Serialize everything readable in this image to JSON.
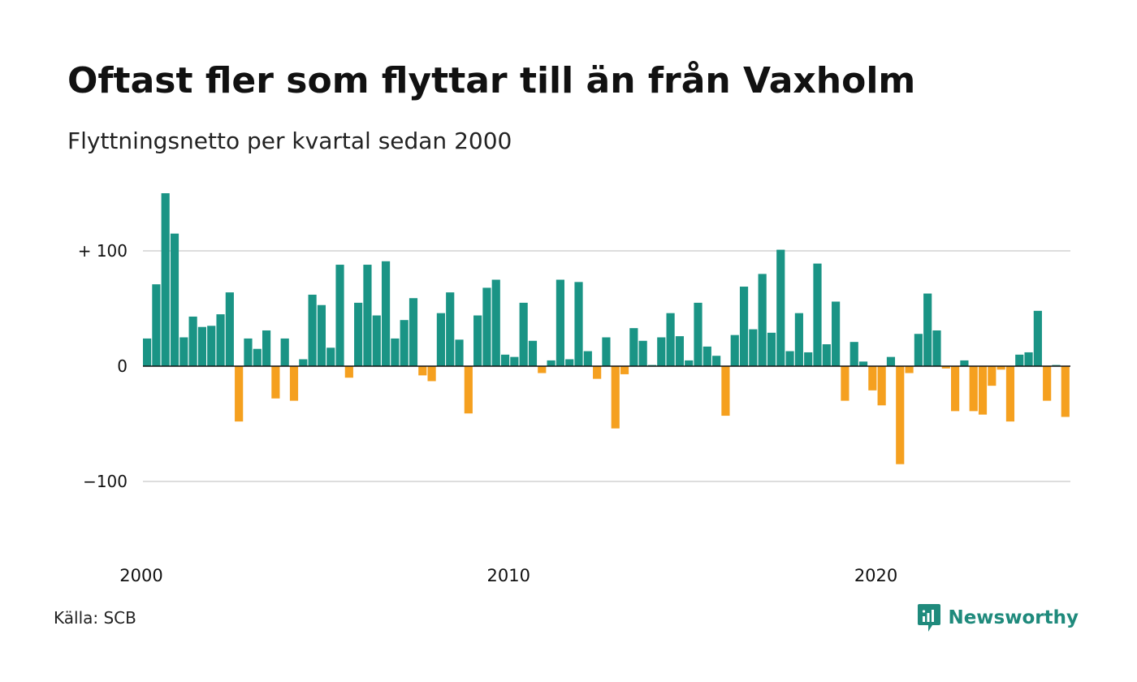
{
  "title": "Oftast fler som flyttar till än från Vaxholm",
  "subtitle": "Flyttningsnetto per kvartal sedan 2000",
  "source": "Källa: SCB",
  "brand": {
    "name": "Newsworthy",
    "icon": "newsworthy-logo-icon"
  },
  "colors": {
    "positive": "#1a9485",
    "negative": "#f5a01f",
    "grid": "#dddddd",
    "axis": "#111111",
    "brand": "#1f8a7c"
  },
  "chart_data": {
    "type": "bar",
    "title": "Oftast fler som flyttar till än från Vaxholm",
    "subtitle": "Flyttningsnetto per kvartal sedan 2000",
    "xlabel": "",
    "ylabel": "",
    "x_ticks": [
      {
        "label": "2000",
        "index": 0
      },
      {
        "label": "2010",
        "index": 40
      },
      {
        "label": "2020",
        "index": 80
      }
    ],
    "y_ticks": [
      {
        "label": "+ 100",
        "value": 100
      },
      {
        "label": "0",
        "value": 0
      },
      {
        "label": "−100",
        "value": -100
      }
    ],
    "ylim": [
      -165,
      155
    ],
    "grid": true,
    "legend": "none",
    "values": [
      24,
      71,
      150,
      115,
      25,
      43,
      34,
      35,
      45,
      64,
      -48,
      24,
      15,
      31,
      -28,
      24,
      -30,
      6,
      62,
      53,
      16,
      88,
      -10,
      55,
      88,
      44,
      91,
      24,
      40,
      59,
      -8,
      -13,
      46,
      64,
      23,
      -41,
      44,
      68,
      75,
      10,
      8,
      55,
      22,
      -6,
      5,
      75,
      6,
      73,
      13,
      -11,
      25,
      -54,
      -7,
      33,
      22,
      1,
      25,
      46,
      26,
      5,
      55,
      17,
      9,
      -43,
      27,
      69,
      32,
      80,
      29,
      101,
      13,
      46,
      12,
      89,
      19,
      56,
      -30,
      21,
      4,
      -21,
      -34,
      8,
      -85,
      -6,
      28,
      63,
      31,
      -2,
      -39,
      5,
      -39,
      -42,
      -17,
      -3,
      -48,
      10,
      12,
      48,
      -30,
      1,
      -44
    ]
  }
}
